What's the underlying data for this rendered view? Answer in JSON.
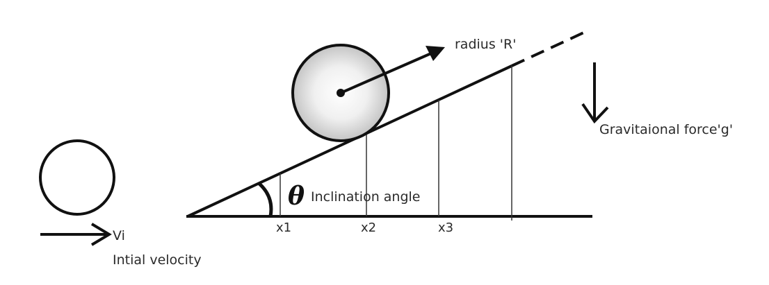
{
  "labels": {
    "radius": "radius 'R'",
    "gravity": "Gravitaional force'g'",
    "theta_symbol": "θ",
    "inclination": "Inclination angle",
    "x1": "x1",
    "x2": "x2",
    "x3": "x3",
    "vi": "Vi",
    "initial_velocity": "Intial velocity"
  },
  "colors": {
    "ink": "#111111",
    "ball_center": "#ffffff",
    "ball_edge": "#c8c8c8"
  }
}
